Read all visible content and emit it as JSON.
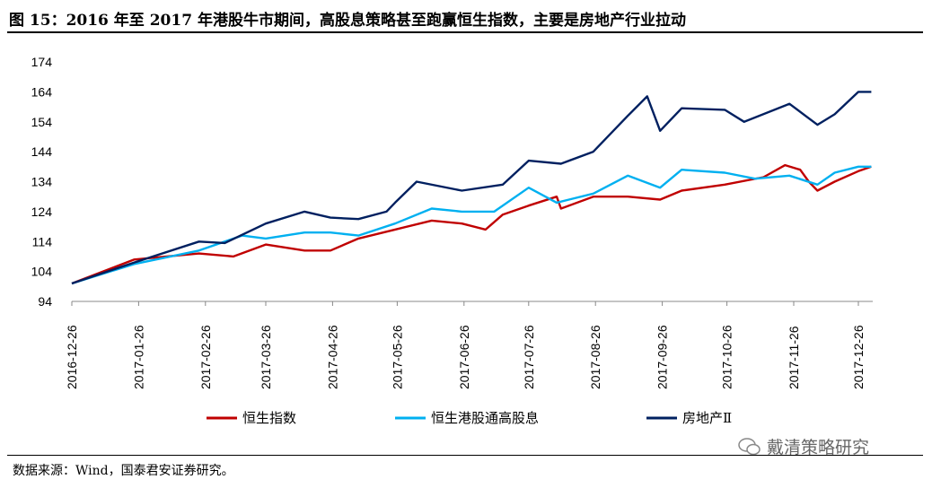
{
  "title": "图 15：2016 年至 2017 年港股牛市期间，高股息策略甚至跑赢恒生指数，主要是房地产行业拉动",
  "source": "数据来源：Wind，国泰君安证券研究。",
  "watermark": "戴清策略研究",
  "chart_data": {
    "type": "line",
    "title": "图 15：2016 年至 2017 年港股牛市期间，高股息策略甚至跑赢恒生指数，主要是房地产行业拉动",
    "xlabel": "",
    "ylabel": "",
    "ylim": [
      94,
      174
    ],
    "yticks": [
      "94",
      "104",
      "114",
      "124",
      "134",
      "144",
      "154",
      "164",
      "174"
    ],
    "x_unit": "days since 2016-12-26",
    "xlim": [
      0,
      372
    ],
    "xticks": [
      "2016-12-26",
      "2017-01-26",
      "2017-02-26",
      "2017-03-26",
      "2017-04-26",
      "2017-05-26",
      "2017-06-26",
      "2017-07-26",
      "2017-08-26",
      "2017-09-26",
      "2017-10-26",
      "2017-11-26",
      "2017-12-26"
    ],
    "xtick_days": [
      0,
      31,
      62,
      90,
      121,
      151,
      182,
      212,
      243,
      274,
      304,
      335,
      365
    ],
    "legend_position": "bottom",
    "series": [
      {
        "name": "恒生指数",
        "color": "#C00000",
        "x": [
          0,
          29,
          59,
          75,
          90,
          108,
          120,
          133,
          150,
          167,
          181,
          192,
          200,
          212,
          225,
          227,
          242,
          258,
          273,
          283,
          303,
          321,
          331,
          338,
          342,
          346,
          354,
          365,
          371
        ],
        "y": [
          100,
          108,
          110,
          109,
          113,
          111,
          111,
          115,
          118,
          121,
          120,
          118,
          123,
          126,
          129,
          125,
          129,
          129,
          128,
          131,
          133,
          135.5,
          139.5,
          138,
          134,
          131,
          134,
          137.5,
          139
        ]
      },
      {
        "name": "恒生港股通高股息",
        "color": "#00B0F0",
        "x": [
          0,
          29,
          59,
          79,
          90,
          108,
          120,
          133,
          150,
          167,
          181,
          196,
          212,
          225,
          242,
          258,
          273,
          283,
          303,
          317,
          333,
          346,
          354,
          365,
          371
        ],
        "y": [
          100,
          106.5,
          111,
          116,
          115,
          117,
          117,
          116,
          120,
          125,
          124,
          124,
          132,
          127,
          130,
          136,
          132,
          138,
          137,
          135,
          136,
          133,
          137,
          139,
          139
        ]
      },
      {
        "name": "房地产Ⅱ",
        "color": "#002060",
        "x": [
          0,
          29,
          59,
          71,
          90,
          108,
          120,
          133,
          146,
          150,
          160,
          181,
          200,
          212,
          227,
          242,
          258,
          267,
          273,
          283,
          303,
          312,
          333,
          346,
          354,
          365,
          371
        ],
        "y": [
          100,
          107,
          114,
          113.5,
          120,
          124,
          122,
          121.5,
          124,
          127,
          134,
          131,
          133,
          141,
          140,
          144,
          156,
          162.5,
          151,
          158.5,
          158,
          154,
          160,
          153,
          156.5,
          164,
          164
        ]
      }
    ]
  }
}
